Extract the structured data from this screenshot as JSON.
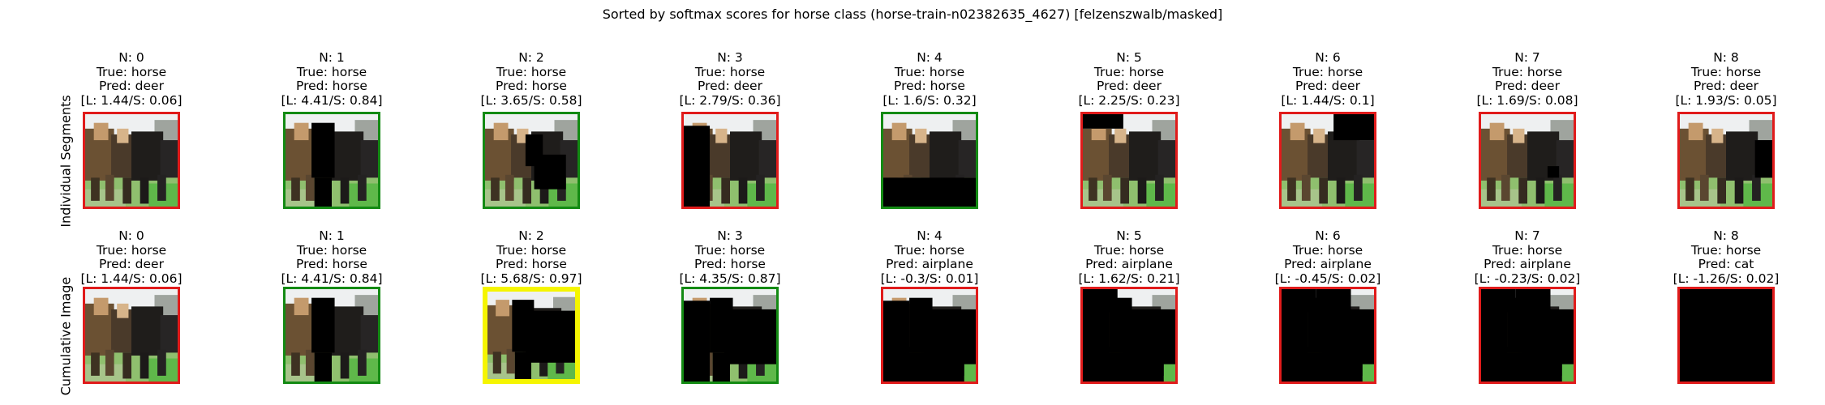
{
  "title": "Sorted by softmax scores for horse class (horse-train-n02382635_4627) [felzenszwalb/masked]",
  "colors": {
    "red": "#e01b1b",
    "green": "#138a13",
    "yellow": "#f5f500"
  },
  "rows": [
    {
      "label": "Individual Segments",
      "cells": [
        {
          "n": "N: 0",
          "true_label": "True: horse",
          "pred": "Pred: deer",
          "score": "[L: 1.44/S: 0.06]",
          "border": "red",
          "mask": []
        },
        {
          "n": "N: 1",
          "true_label": "True: horse",
          "pred": "Pred: horse",
          "score": "[L: 4.41/S: 0.84]",
          "border": "green",
          "mask": [
            "seg1"
          ]
        },
        {
          "n": "N: 2",
          "true_label": "True: horse",
          "pred": "Pred: horse",
          "score": "[L: 3.65/S: 0.58]",
          "border": "green",
          "mask": [
            "seg2"
          ]
        },
        {
          "n": "N: 3",
          "true_label": "True: horse",
          "pred": "Pred: deer",
          "score": "[L: 2.79/S: 0.36]",
          "border": "red",
          "mask": [
            "seg3"
          ]
        },
        {
          "n": "N: 4",
          "true_label": "True: horse",
          "pred": "Pred: horse",
          "score": "[L: 1.6/S: 0.32]",
          "border": "green",
          "mask": [
            "seg4"
          ]
        },
        {
          "n": "N: 5",
          "true_label": "True: horse",
          "pred": "Pred: deer",
          "score": "[L: 2.25/S: 0.23]",
          "border": "red",
          "mask": [
            "seg5"
          ]
        },
        {
          "n": "N: 6",
          "true_label": "True: horse",
          "pred": "Pred: deer",
          "score": "[L: 1.44/S: 0.1]",
          "border": "red",
          "mask": [
            "seg6"
          ]
        },
        {
          "n": "N: 7",
          "true_label": "True: horse",
          "pred": "Pred: deer",
          "score": "[L: 1.69/S: 0.08]",
          "border": "red",
          "mask": [
            "seg7"
          ]
        },
        {
          "n": "N: 8",
          "true_label": "True: horse",
          "pred": "Pred: deer",
          "score": "[L: 1.93/S: 0.05]",
          "border": "red",
          "mask": [
            "seg8"
          ]
        }
      ]
    },
    {
      "label": "Cumulative Image",
      "cells": [
        {
          "n": "N: 0",
          "true_label": "True: horse",
          "pred": "Pred: deer",
          "score": "[L: 1.44/S: 0.06]",
          "border": "red",
          "mask": []
        },
        {
          "n": "N: 1",
          "true_label": "True: horse",
          "pred": "Pred: horse",
          "score": "[L: 4.41/S: 0.84]",
          "border": "green",
          "mask": [
            "seg1"
          ]
        },
        {
          "n": "N: 2",
          "true_label": "True: horse",
          "pred": "Pred: horse",
          "score": "[L: 5.68/S: 0.97]",
          "border": "yellow",
          "mask": [
            "seg1",
            "seg2"
          ]
        },
        {
          "n": "N: 3",
          "true_label": "True: horse",
          "pred": "Pred: horse",
          "score": "[L: 4.35/S: 0.87]",
          "border": "green",
          "mask": [
            "seg1",
            "seg2",
            "seg3"
          ]
        },
        {
          "n": "N: 4",
          "true_label": "True: horse",
          "pred": "Pred: airplane",
          "score": "[L: -0.3/S: 0.01]",
          "border": "red",
          "mask": [
            "seg1",
            "seg2",
            "seg3",
            "seg4"
          ]
        },
        {
          "n": "N: 5",
          "true_label": "True: horse",
          "pred": "Pred: airplane",
          "score": "[L: 1.62/S: 0.21]",
          "border": "red",
          "mask": [
            "seg1",
            "seg2",
            "seg3",
            "seg4",
            "seg5"
          ]
        },
        {
          "n": "N: 6",
          "true_label": "True: horse",
          "pred": "Pred: airplane",
          "score": "[L: -0.45/S: 0.02]",
          "border": "red",
          "mask": [
            "seg1",
            "seg2",
            "seg3",
            "seg4",
            "seg5",
            "seg6"
          ]
        },
        {
          "n": "N: 7",
          "true_label": "True: horse",
          "pred": "Pred: airplane",
          "score": "[L: -0.23/S: 0.02]",
          "border": "red",
          "mask": [
            "seg1",
            "seg2",
            "seg3",
            "seg4",
            "seg5",
            "seg6",
            "seg7"
          ]
        },
        {
          "n": "N: 8",
          "true_label": "True: horse",
          "pred": "Pred: cat",
          "score": "[L: -1.26/S: 0.02]",
          "border": "red",
          "mask": [
            "seg1",
            "seg2",
            "seg3",
            "seg4",
            "seg5",
            "seg6",
            "seg7",
            "seg8"
          ]
        }
      ]
    }
  ]
}
